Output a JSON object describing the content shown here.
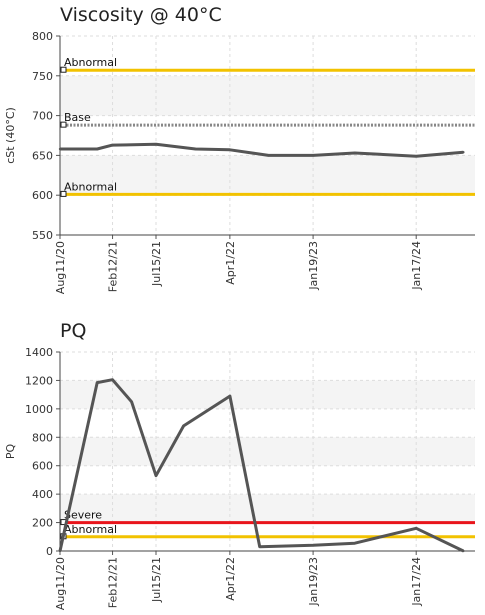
{
  "chart_data": [
    {
      "type": "line",
      "title": "Viscosity @ 40°C",
      "ylabel": "cSt (40°C)",
      "ylim": [
        550,
        800
      ],
      "yticks": [
        550,
        600,
        650,
        700,
        750,
        800
      ],
      "grid": true,
      "x_tick_labels": [
        "Aug11/20",
        "Feb12/21",
        "Jul15/21",
        "Apr1/22",
        "Jan19/23",
        "Jan17/24"
      ],
      "series": [
        {
          "values": [
            {
              "x": "2020-08-11",
              "y": 658
            },
            {
              "x": "2020-12-20",
              "y": 658
            },
            {
              "x": "2021-02-12",
              "y": 663
            },
            {
              "x": "2021-07-15",
              "y": 664
            },
            {
              "x": "2021-12-01",
              "y": 658
            },
            {
              "x": "2022-04-01",
              "y": 657
            },
            {
              "x": "2022-08-15",
              "y": 650
            },
            {
              "x": "2023-01-19",
              "y": 650
            },
            {
              "x": "2023-06-15",
              "y": 653
            },
            {
              "x": "2024-01-17",
              "y": 649
            },
            {
              "x": "2024-07-01",
              "y": 654
            }
          ]
        }
      ],
      "reference_lines": [
        {
          "label": "Abnormal",
          "value": 757,
          "color": "#F2C200",
          "style": "solid"
        },
        {
          "label": "Base",
          "value": 688,
          "color": "#888888",
          "style": "dotted"
        },
        {
          "label": "Abnormal",
          "value": 601,
          "color": "#F2C200",
          "style": "solid"
        }
      ]
    },
    {
      "type": "line",
      "title": "PQ",
      "ylabel": "PQ",
      "ylim": [
        0,
        1400
      ],
      "yticks": [
        0,
        200,
        400,
        600,
        800,
        1000,
        1200,
        1400
      ],
      "grid": true,
      "x_tick_labels": [
        "Aug11/20",
        "Feb12/21",
        "Jul15/21",
        "Apr1/22",
        "Jan19/23",
        "Jan17/24"
      ],
      "series": [
        {
          "values": [
            {
              "x": "2020-08-11",
              "y": 0
            },
            {
              "x": "2020-12-20",
              "y": 1185
            },
            {
              "x": "2021-02-12",
              "y": 1205
            },
            {
              "x": "2021-04-20",
              "y": 1050
            },
            {
              "x": "2021-07-15",
              "y": 530
            },
            {
              "x": "2021-10-20",
              "y": 880
            },
            {
              "x": "2022-04-01",
              "y": 1090
            },
            {
              "x": "2022-07-15",
              "y": 30
            },
            {
              "x": "2023-01-19",
              "y": 40
            },
            {
              "x": "2023-06-15",
              "y": 55
            },
            {
              "x": "2024-01-17",
              "y": 160
            },
            {
              "x": "2024-07-01",
              "y": 0
            }
          ]
        }
      ],
      "reference_lines": [
        {
          "label": "Severe",
          "value": 200,
          "color": "#E8141B",
          "style": "solid"
        },
        {
          "label": "Abnormal",
          "value": 100,
          "color": "#F2C200",
          "style": "solid"
        }
      ]
    }
  ]
}
